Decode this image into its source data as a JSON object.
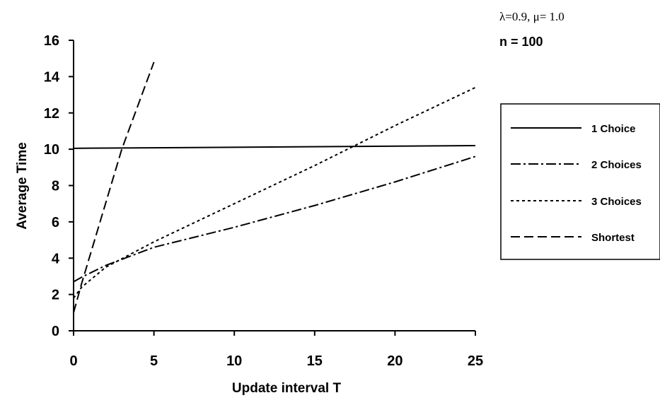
{
  "annotations": {
    "params": "λ=0.9, μ= 1.0",
    "n_label": "n  =  100"
  },
  "chart_data": {
    "type": "line",
    "xlabel": "Update interval T",
    "ylabel": "Average Time",
    "xlim": [
      0,
      25
    ],
    "ylim": [
      0,
      16
    ],
    "x_ticks": [
      "0",
      "5",
      "10",
      "15",
      "20",
      "25"
    ],
    "y_ticks": [
      "0",
      "2",
      "4",
      "6",
      "8",
      "10",
      "12",
      "14",
      "16"
    ],
    "grid": false,
    "legend_position": "right",
    "series": [
      {
        "name": "1 Choice",
        "style": "solid",
        "color": "#000000",
        "x": [
          0,
          25
        ],
        "y": [
          10.05,
          10.2
        ]
      },
      {
        "name": "2 Choices",
        "style": "dashdot",
        "color": "#000000",
        "x": [
          0,
          0.5,
          2,
          5,
          10,
          15,
          20,
          25
        ],
        "y": [
          2.7,
          2.95,
          3.6,
          4.6,
          5.7,
          6.9,
          8.2,
          9.6
        ]
      },
      {
        "name": "3 Choices",
        "style": "dotted",
        "color": "#000000",
        "x": [
          0,
          0.5,
          2,
          5,
          10,
          15,
          20,
          25
        ],
        "y": [
          1.8,
          2.4,
          3.5,
          4.9,
          7.0,
          9.1,
          11.3,
          13.4
        ]
      },
      {
        "name": "Shortest",
        "style": "dashed",
        "color": "#000000",
        "x": [
          0,
          0.5,
          3,
          5
        ],
        "y": [
          1.0,
          2.6,
          10.0,
          14.8
        ]
      }
    ]
  }
}
